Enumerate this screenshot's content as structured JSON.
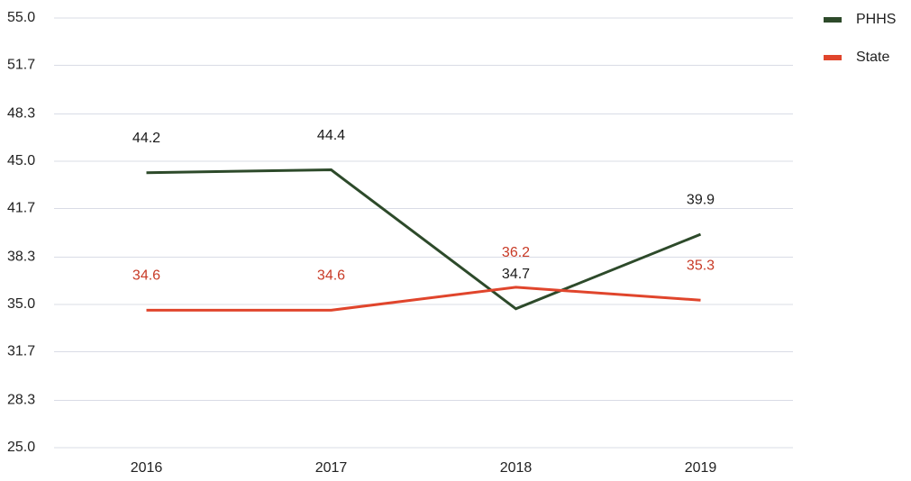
{
  "chart_data": {
    "type": "line",
    "categories": [
      "2016",
      "2017",
      "2018",
      "2019"
    ],
    "series": [
      {
        "name": "PHHS",
        "color": "#2d4a2a",
        "label_color": "#1a1a1a",
        "values": [
          44.2,
          44.4,
          34.7,
          39.9
        ]
      },
      {
        "name": "State",
        "color": "#e0452c",
        "label_color": "#c83a26",
        "values": [
          34.6,
          34.6,
          36.2,
          35.3
        ]
      }
    ],
    "ylim": [
      25,
      55
    ],
    "yticks": [
      {
        "value": 25,
        "label": "25.0"
      },
      28.3,
      31.7,
      {
        "value": 35,
        "label": "35.0"
      },
      38.3,
      41.7,
      {
        "value": 45,
        "label": "45.0"
      },
      48.3,
      51.7,
      {
        "value": 55,
        "label": "55.0"
      }
    ],
    "grid": true,
    "legend": "top-right"
  }
}
